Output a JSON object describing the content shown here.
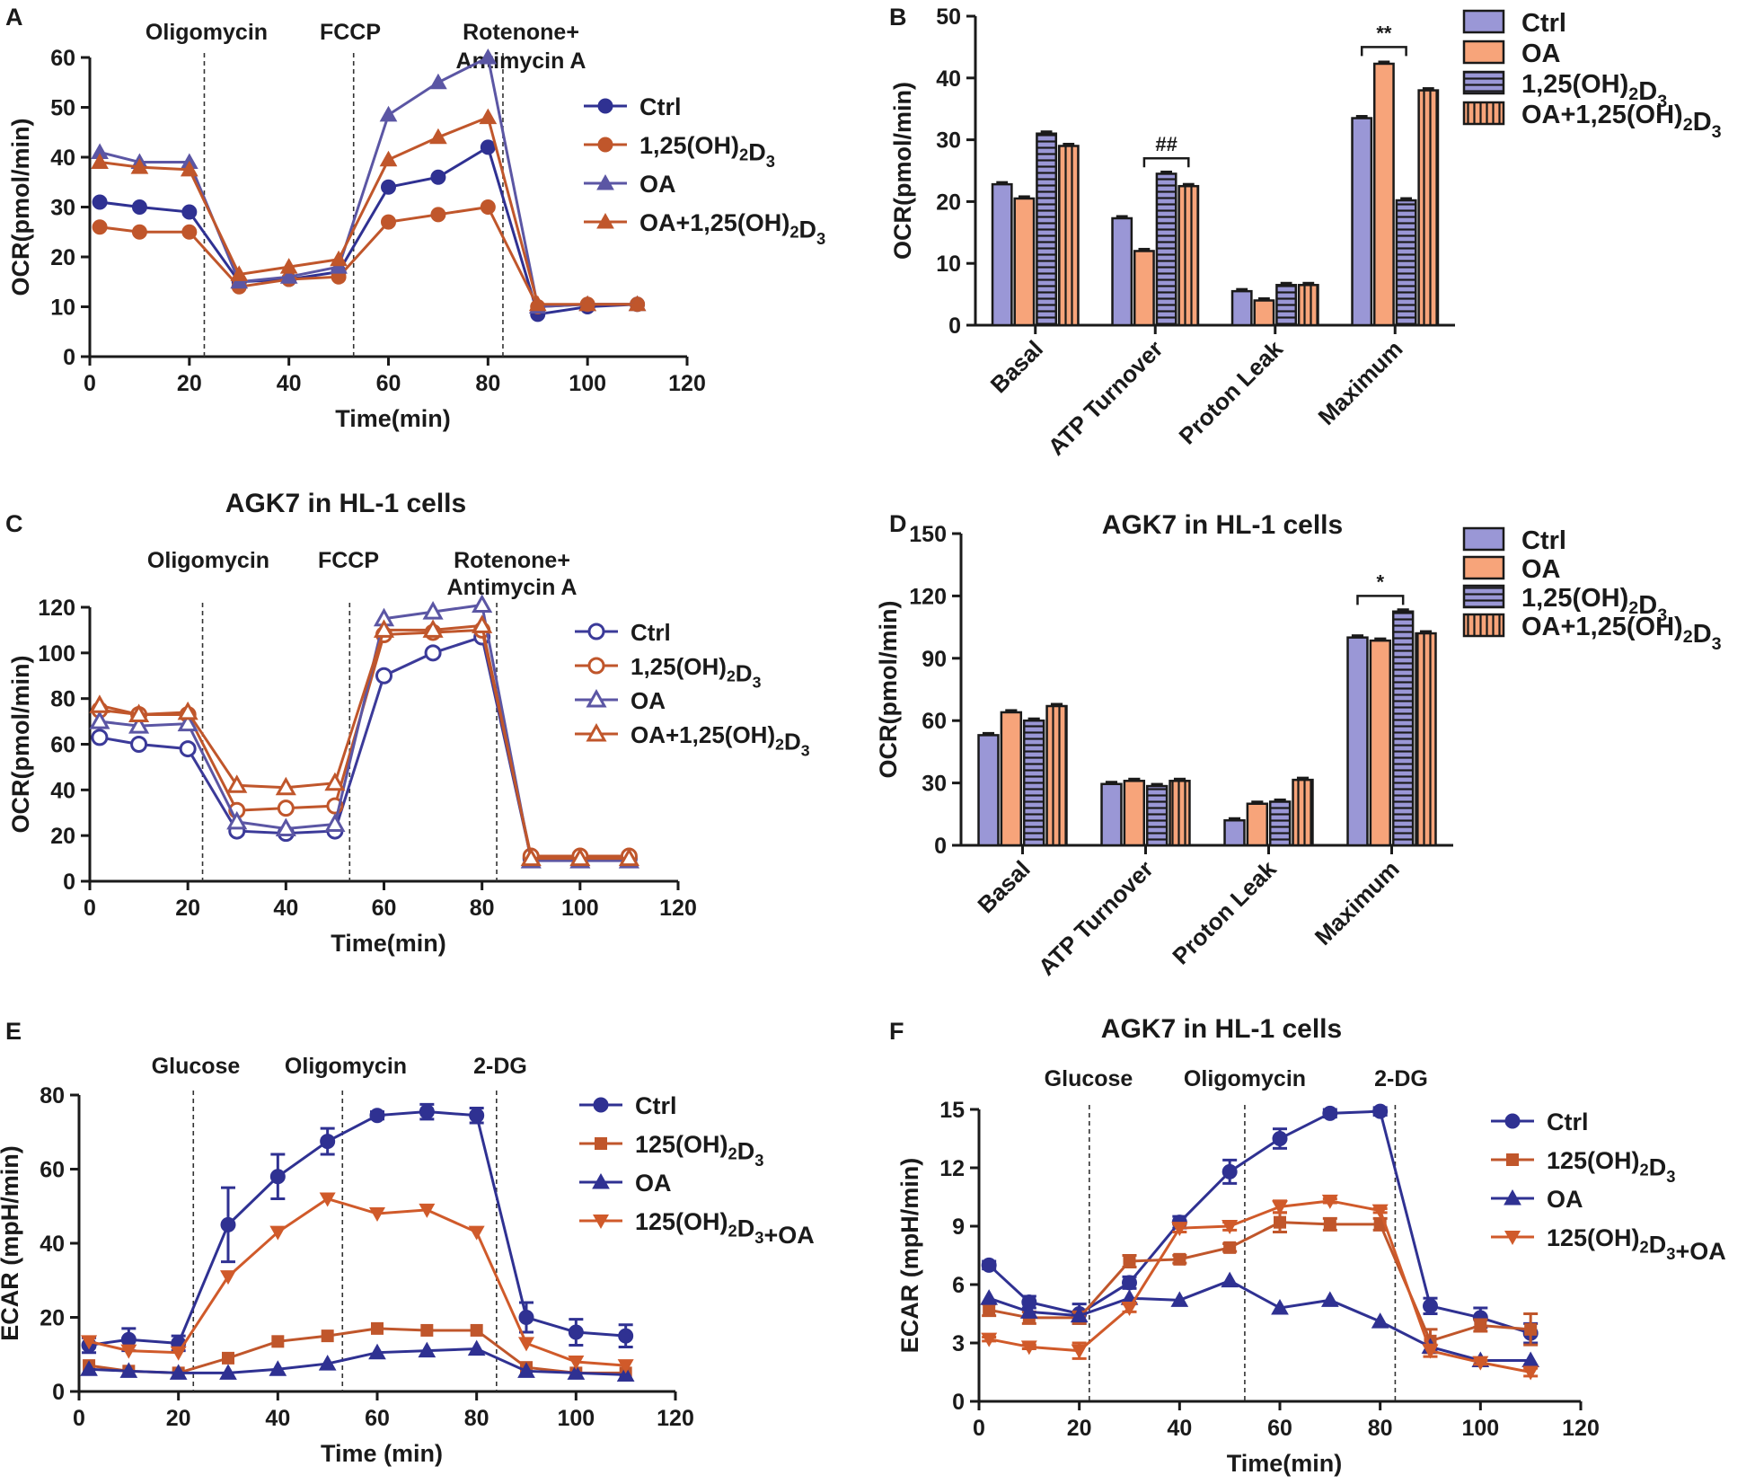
{
  "colors": {
    "navy": "#2f3192",
    "navy_line": "#3b3a99",
    "orange": "#c0562b",
    "orange_bright": "#d05a2a",
    "purple_tri": "#5b56a4",
    "bar_purple": "#9a97d6",
    "bar_orange": "#f7a47a"
  },
  "chart_data": [
    {
      "id": "A",
      "panel_label": "A",
      "type": "line",
      "title": "",
      "xlabel": "Time(min)",
      "ylabel": "OCR(pmol/min)",
      "xlim": [
        0,
        120
      ],
      "ylim": [
        0,
        60
      ],
      "xticks": [
        0,
        20,
        40,
        60,
        80,
        100,
        120
      ],
      "yticks": [
        0,
        10,
        20,
        30,
        40,
        50,
        60
      ],
      "injections": [
        {
          "x": 23,
          "label": "Oligomycin"
        },
        {
          "x": 53,
          "label": "FCCP"
        },
        {
          "x": 83,
          "label": "Rotenone+",
          "label2": "Antimycin A"
        }
      ],
      "x": [
        2,
        10,
        20,
        30,
        40,
        50,
        60,
        70,
        80,
        90,
        100,
        110
      ],
      "series": [
        {
          "name": "Ctrl",
          "marker": "circle",
          "color": "navy",
          "values": [
            31,
            30,
            29,
            15,
            15.5,
            17,
            34,
            36,
            42,
            8.5,
            10,
            10.5
          ]
        },
        {
          "name": "1,25(OH)2D3",
          "marker": "circle",
          "color": "orange",
          "values": [
            26,
            25,
            25,
            14,
            15.5,
            16,
            27,
            28.5,
            30,
            10,
            10.5,
            10.5
          ]
        },
        {
          "name": "OA",
          "marker": "triangle",
          "color": "purple_tri",
          "values": [
            41,
            39,
            39,
            15,
            16,
            18,
            48.5,
            55,
            60,
            10,
            10.5,
            10.5
          ]
        },
        {
          "name": "OA+1,25(OH)2D3",
          "marker": "triangle",
          "color": "orange",
          "values": [
            39,
            38,
            37.5,
            16.5,
            18,
            19.5,
            39.5,
            44,
            48,
            10.5,
            10.5,
            10.5
          ]
        }
      ]
    },
    {
      "id": "B",
      "panel_label": "B",
      "type": "bar",
      "title": "",
      "xlabel": "",
      "ylabel": "OCR(pmol/min)",
      "ylim": [
        0,
        50
      ],
      "yticks": [
        0,
        10,
        20,
        30,
        40,
        50
      ],
      "categories": [
        "Basal",
        "ATP Turnover",
        "Proton Leak",
        "Maximum"
      ],
      "series": [
        {
          "name": "Ctrl",
          "pattern": "solid-purple",
          "values": [
            22.8,
            17.3,
            5.5,
            33.5
          ]
        },
        {
          "name": "OA",
          "pattern": "solid-orange",
          "values": [
            20.5,
            12,
            4,
            42.3
          ]
        },
        {
          "name": "1,25(OH)2D3",
          "pattern": "hstripe-purple",
          "values": [
            31,
            24.5,
            6.5,
            20.2
          ]
        },
        {
          "name": "OA+1,25(OH)2D3",
          "pattern": "vstripe-orange",
          "values": [
            29,
            22.5,
            6.5,
            38
          ]
        }
      ],
      "annotations": [
        {
          "text": "##",
          "category": 1,
          "from_series": 1,
          "to_series": 3,
          "y": 27
        },
        {
          "text": "**",
          "category": 3,
          "from_series": 0,
          "to_series": 2,
          "y": 45
        }
      ]
    },
    {
      "id": "C",
      "panel_label": "C",
      "type": "line",
      "title": "AGK7 in HL-1 cells",
      "xlabel": "Time(min)",
      "ylabel": "OCR(pmol/min)",
      "xlim": [
        0,
        120
      ],
      "ylim": [
        0,
        120
      ],
      "xticks": [
        0,
        20,
        40,
        60,
        80,
        100,
        120
      ],
      "yticks": [
        0,
        20,
        40,
        60,
        80,
        100,
        120
      ],
      "injections": [
        {
          "x": 23,
          "label": "Oligomycin"
        },
        {
          "x": 53,
          "label": "FCCP"
        },
        {
          "x": 83,
          "label": "Rotenone+",
          "label2": "Antimycin A"
        }
      ],
      "x": [
        2,
        10,
        20,
        30,
        40,
        50,
        60,
        70,
        80,
        90,
        100,
        110
      ],
      "series": [
        {
          "name": "Ctrl",
          "marker": "circle-open",
          "color": "navy_line",
          "values": [
            63,
            60,
            58,
            22,
            21,
            22,
            90,
            100,
            107,
            10,
            10,
            10
          ]
        },
        {
          "name": "1,25(OH)2D3",
          "marker": "circle-open",
          "color": "orange",
          "values": [
            75,
            73,
            73,
            31,
            32,
            33,
            108,
            109,
            110,
            11,
            11,
            11
          ]
        },
        {
          "name": "OA",
          "marker": "triangle-open",
          "color": "purple_tri",
          "values": [
            70,
            68,
            69,
            26,
            23,
            25,
            115,
            118,
            121,
            9,
            9,
            9
          ]
        },
        {
          "name": "OA+1,25(OH)2D3",
          "marker": "triangle-open",
          "color": "orange",
          "values": [
            77,
            73,
            74,
            42,
            41,
            43,
            110,
            110,
            112,
            10,
            10,
            10
          ]
        }
      ]
    },
    {
      "id": "D",
      "panel_label": "D",
      "type": "bar",
      "title": "AGK7 in HL-1 cells",
      "xlabel": "",
      "ylabel": "OCR(pmol/min)",
      "ylim": [
        0,
        150
      ],
      "yticks": [
        0,
        30,
        60,
        90,
        120,
        150
      ],
      "categories": [
        "Basal",
        "ATP Turnover",
        "Proton Leak",
        "Maximum"
      ],
      "series": [
        {
          "name": "Ctrl",
          "pattern": "solid-purple",
          "values": [
            53,
            29.5,
            12,
            100
          ]
        },
        {
          "name": "OA",
          "pattern": "solid-orange",
          "values": [
            64,
            31,
            20,
            98.5
          ]
        },
        {
          "name": "1,25(OH)2D3",
          "pattern": "hstripe-purple",
          "values": [
            60,
            28.5,
            21,
            112.5
          ]
        },
        {
          "name": "OA+1,25(OH)2D3",
          "pattern": "vstripe-orange",
          "values": [
            67,
            31,
            31.5,
            102
          ]
        }
      ],
      "annotations": [
        {
          "text": "*",
          "category": 3,
          "from_series": 0,
          "to_series": 2,
          "y": 120
        }
      ]
    },
    {
      "id": "E",
      "panel_label": "E",
      "type": "line",
      "title": "",
      "xlabel": "Time (min)",
      "ylabel": "ECAR (mpH/min)",
      "xlim": [
        0,
        120
      ],
      "ylim": [
        0,
        80
      ],
      "xticks": [
        0,
        20,
        40,
        60,
        80,
        100,
        120
      ],
      "yticks": [
        0,
        20,
        40,
        60,
        80
      ],
      "injections": [
        {
          "x": 23,
          "label": "Glucose"
        },
        {
          "x": 53,
          "label": "Oligomycin"
        },
        {
          "x": 84,
          "label": "2-DG"
        }
      ],
      "x": [
        2,
        10,
        20,
        30,
        40,
        50,
        60,
        70,
        80,
        90,
        100,
        110
      ],
      "series": [
        {
          "name": "Ctrl",
          "marker": "circle",
          "color": "navy",
          "values": [
            12.5,
            14,
            13,
            45,
            58,
            67.5,
            74.5,
            75.5,
            74.5,
            20,
            16,
            15
          ],
          "errors": [
            2,
            3,
            2,
            10,
            6,
            3.5,
            1,
            2,
            2,
            4,
            3.5,
            3
          ]
        },
        {
          "name": "125(OH)2D3",
          "marker": "square",
          "color": "orange",
          "values": [
            7,
            5.5,
            5,
            9,
            13.5,
            15,
            17,
            16.5,
            16.5,
            6.5,
            5,
            5
          ]
        },
        {
          "name": "OA",
          "marker": "triangle",
          "color": "navy",
          "values": [
            6,
            5.5,
            5,
            5,
            6,
            7.5,
            10.5,
            11,
            11.5,
            5.5,
            5,
            4.5
          ]
        },
        {
          "name": "125(OH)2D3+OA",
          "marker": "triangle-down",
          "color": "orange_bright",
          "values": [
            13.5,
            11,
            10.5,
            31,
            43,
            52,
            48,
            49,
            43,
            13,
            8,
            7
          ]
        }
      ]
    },
    {
      "id": "F",
      "panel_label": "F",
      "type": "line",
      "title": "AGK7 in HL-1 cells",
      "xlabel": "Time(min)",
      "ylabel": "ECAR (mpH/min)",
      "xlim": [
        0,
        120
      ],
      "ylim": [
        0,
        15
      ],
      "xticks": [
        0,
        20,
        40,
        60,
        80,
        100,
        120
      ],
      "yticks": [
        0,
        3,
        6,
        9,
        12,
        15
      ],
      "injections": [
        {
          "x": 22,
          "label": "Glucose"
        },
        {
          "x": 53,
          "label": "Oligomycin"
        },
        {
          "x": 83,
          "label": "2-DG"
        }
      ],
      "x": [
        2,
        10,
        20,
        30,
        40,
        50,
        60,
        70,
        80,
        90,
        100,
        110
      ],
      "series": [
        {
          "name": "Ctrl",
          "marker": "circle",
          "color": "navy",
          "values": [
            7,
            5.1,
            4.5,
            6.1,
            9.2,
            11.8,
            13.5,
            14.8,
            14.9,
            4.9,
            4.3,
            3.5
          ],
          "errors": [
            0.2,
            0.3,
            0.5,
            0.3,
            0.3,
            0.6,
            0.5,
            0.2,
            0.2,
            0.4,
            0.5,
            0.5
          ]
        },
        {
          "name": "125(OH)2D3",
          "marker": "square",
          "color": "orange",
          "values": [
            4.7,
            4.3,
            4.3,
            7.2,
            7.3,
            7.9,
            9.2,
            9.1,
            9.1,
            3.1,
            3.9,
            3.7
          ],
          "errors": [
            0.3,
            0.3,
            0.3,
            0.3,
            0.2,
            0.2,
            0.5,
            0.3,
            0.3,
            0.6,
            0.3,
            0.8
          ]
        },
        {
          "name": "OA",
          "marker": "triangle",
          "color": "navy",
          "values": [
            5.3,
            4.6,
            4.4,
            5.3,
            5.2,
            6.2,
            4.8,
            5.2,
            4.1,
            2.8,
            2.1,
            2.1
          ]
        },
        {
          "name": "125(OH)2D3+OA",
          "marker": "triangle-down",
          "color": "orange_bright",
          "values": [
            3.2,
            2.8,
            2.6,
            4.8,
            8.9,
            9.0,
            10.0,
            10.3,
            9.8,
            2.6,
            2.0,
            1.5
          ],
          "errors": [
            0.1,
            0.1,
            0.4,
            0.2,
            0.2,
            0.2,
            0.3,
            0.1,
            0.1,
            0.3,
            0.1,
            0.2
          ]
        }
      ]
    }
  ]
}
